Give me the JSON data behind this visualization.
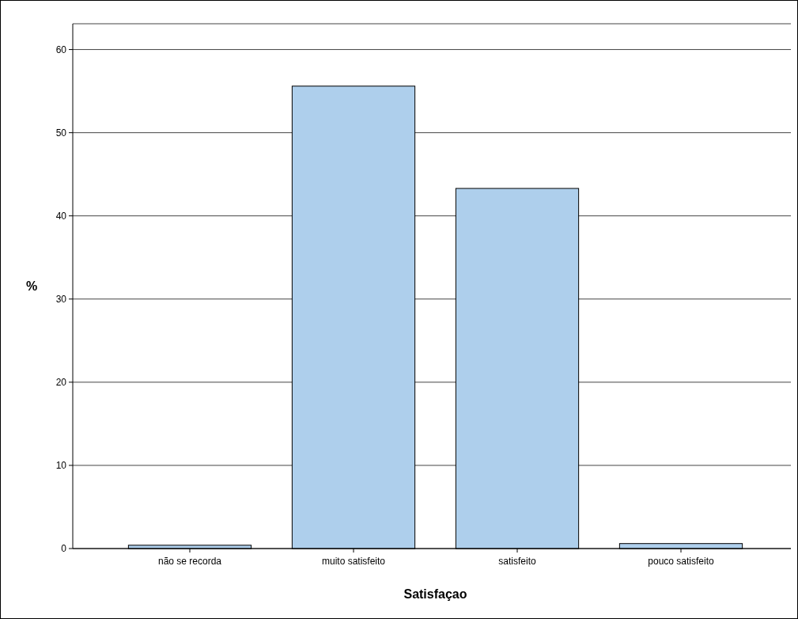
{
  "chart_data": {
    "type": "bar",
    "xlabel": "Satisfaçao",
    "ylabel": "%",
    "categories": [
      "não se recorda",
      "muito satisfeito",
      "satisfeito",
      "pouco satisfeito"
    ],
    "values": [
      0.4,
      55.6,
      43.3,
      0.6
    ],
    "color": "#aecfec",
    "ylim": [
      0,
      63.1
    ],
    "yticks": [
      0,
      10,
      20,
      30,
      40,
      50,
      60
    ],
    "grid": "y"
  }
}
